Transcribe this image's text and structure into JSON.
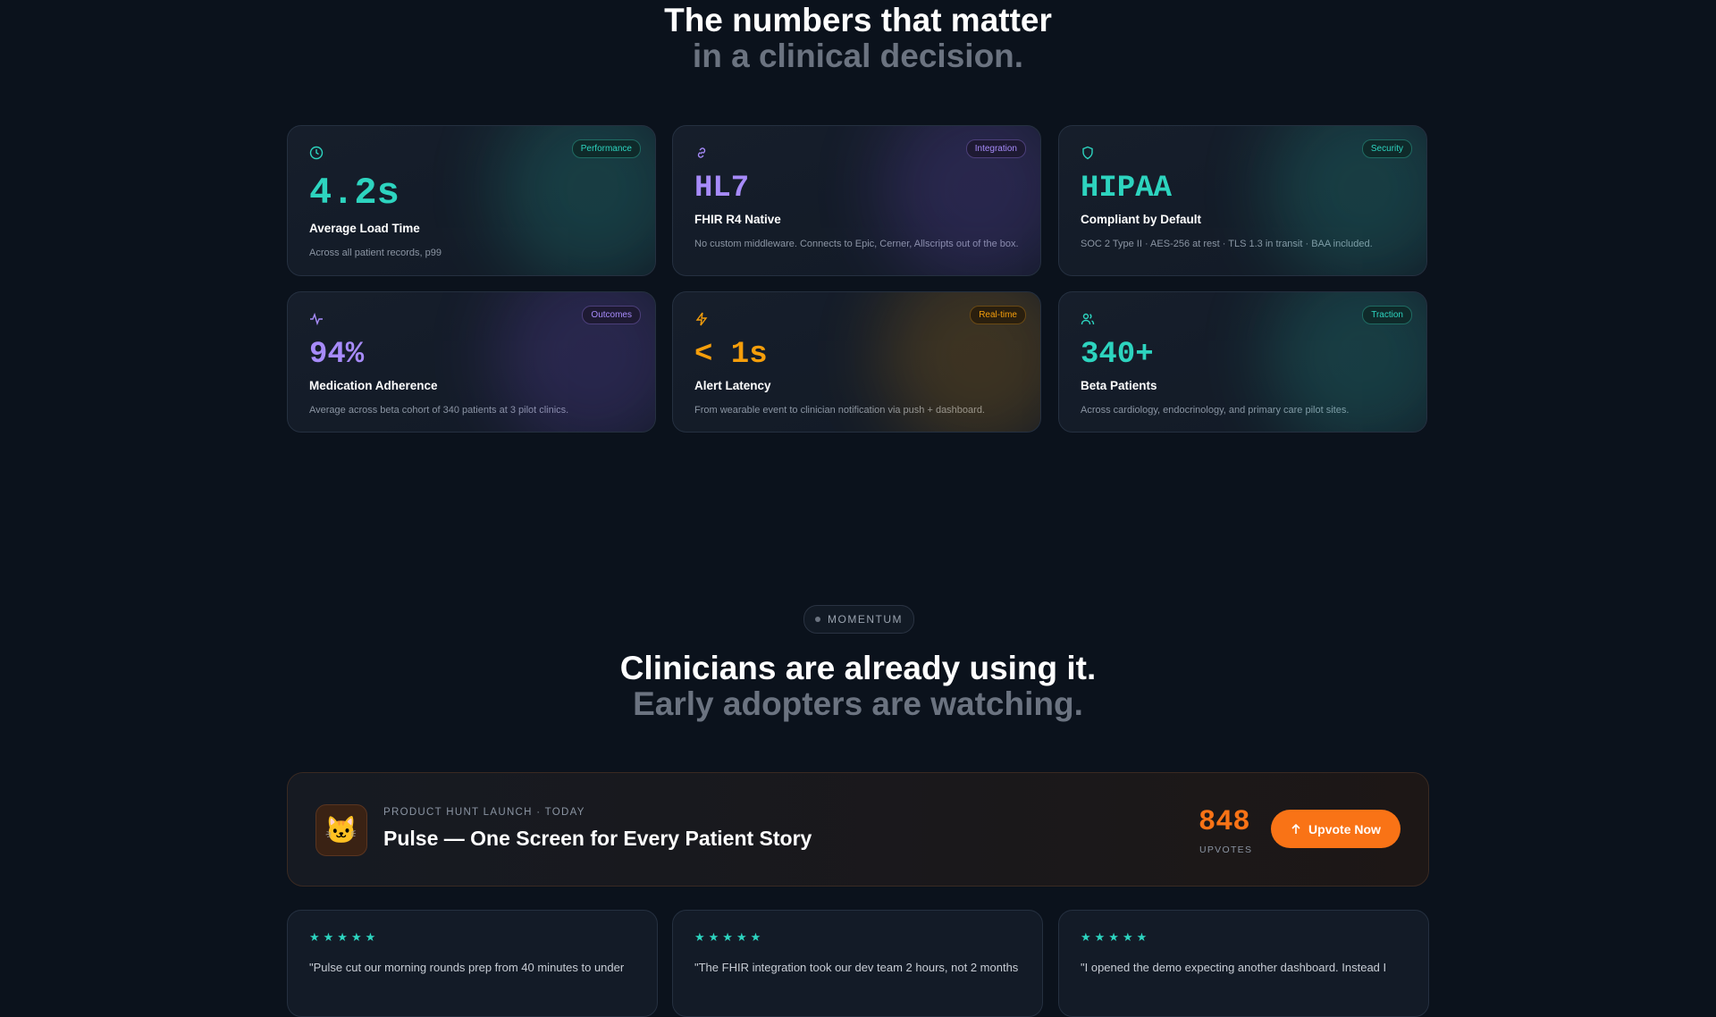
{
  "header": {
    "title": "The numbers that matter",
    "subtitle": "in a clinical decision."
  },
  "stats": [
    {
      "badge": "Performance",
      "value": "4.2s",
      "label": "Average Load Time",
      "description": "Across all patient records, p99"
    },
    {
      "badge": "Integration",
      "value": "HL7",
      "label": "FHIR R4 Native",
      "description": "No custom middleware. Connects to Epic, Cerner, Allscripts out of the box."
    },
    {
      "badge": "Security",
      "value": "HIPAA",
      "label": "Compliant by Default",
      "description": "SOC 2 Type II · AES-256 at rest · TLS 1.3 in transit · BAA included."
    },
    {
      "badge": "Outcomes",
      "value": "94%",
      "label": "Medication Adherence",
      "description": "Average across beta cohort of 340 patients at 3 pilot clinics."
    },
    {
      "badge": "Real-time",
      "value": "< 1s",
      "label": "Alert Latency",
      "description": "From wearable event to clinician notification via push + dashboard."
    },
    {
      "badge": "Traction",
      "value": "340+",
      "label": "Beta Patients",
      "description": "Across cardiology, endocrinology, and primary care pilot sites."
    }
  ],
  "momentum": {
    "pill": "MOMENTUM",
    "title": "Clinicians are already using it.",
    "subtitle": "Early adopters are watching."
  },
  "launch": {
    "eyebrow": "PRODUCT HUNT LAUNCH · TODAY",
    "title": "Pulse — One Screen for Every Patient Story",
    "count": "848",
    "count_label": "UPVOTES",
    "button": "Upvote Now"
  },
  "testimonials": [
    {
      "quote": "\"Pulse cut our morning rounds prep from 40 minutes to under"
    },
    {
      "quote": "\"The FHIR integration took our dev team 2 hours, not 2 months"
    },
    {
      "quote": "\"I opened the demo expecting another dashboard. Instead I"
    }
  ]
}
